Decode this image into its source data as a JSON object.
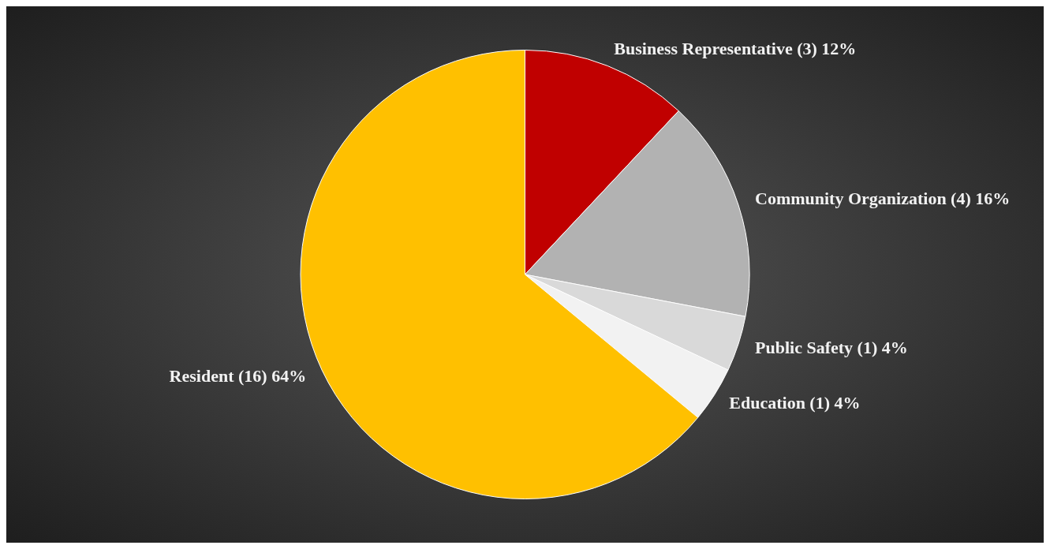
{
  "chart_data": {
    "type": "pie",
    "categories": [
      "Business Representative",
      "Community Organization",
      "Public Safety",
      "Education",
      "Resident"
    ],
    "values": [
      3,
      4,
      1,
      1,
      16
    ],
    "value_labels": [
      "(3) 12%",
      "(4) 16%",
      "(1) 4%",
      "(1) 4%",
      "(16) 64%"
    ],
    "colors": [
      "#c00000",
      "#b2b2b2",
      "#d9d9d9",
      "#f2f2f2",
      "#ffc000"
    ],
    "legend": false
  }
}
